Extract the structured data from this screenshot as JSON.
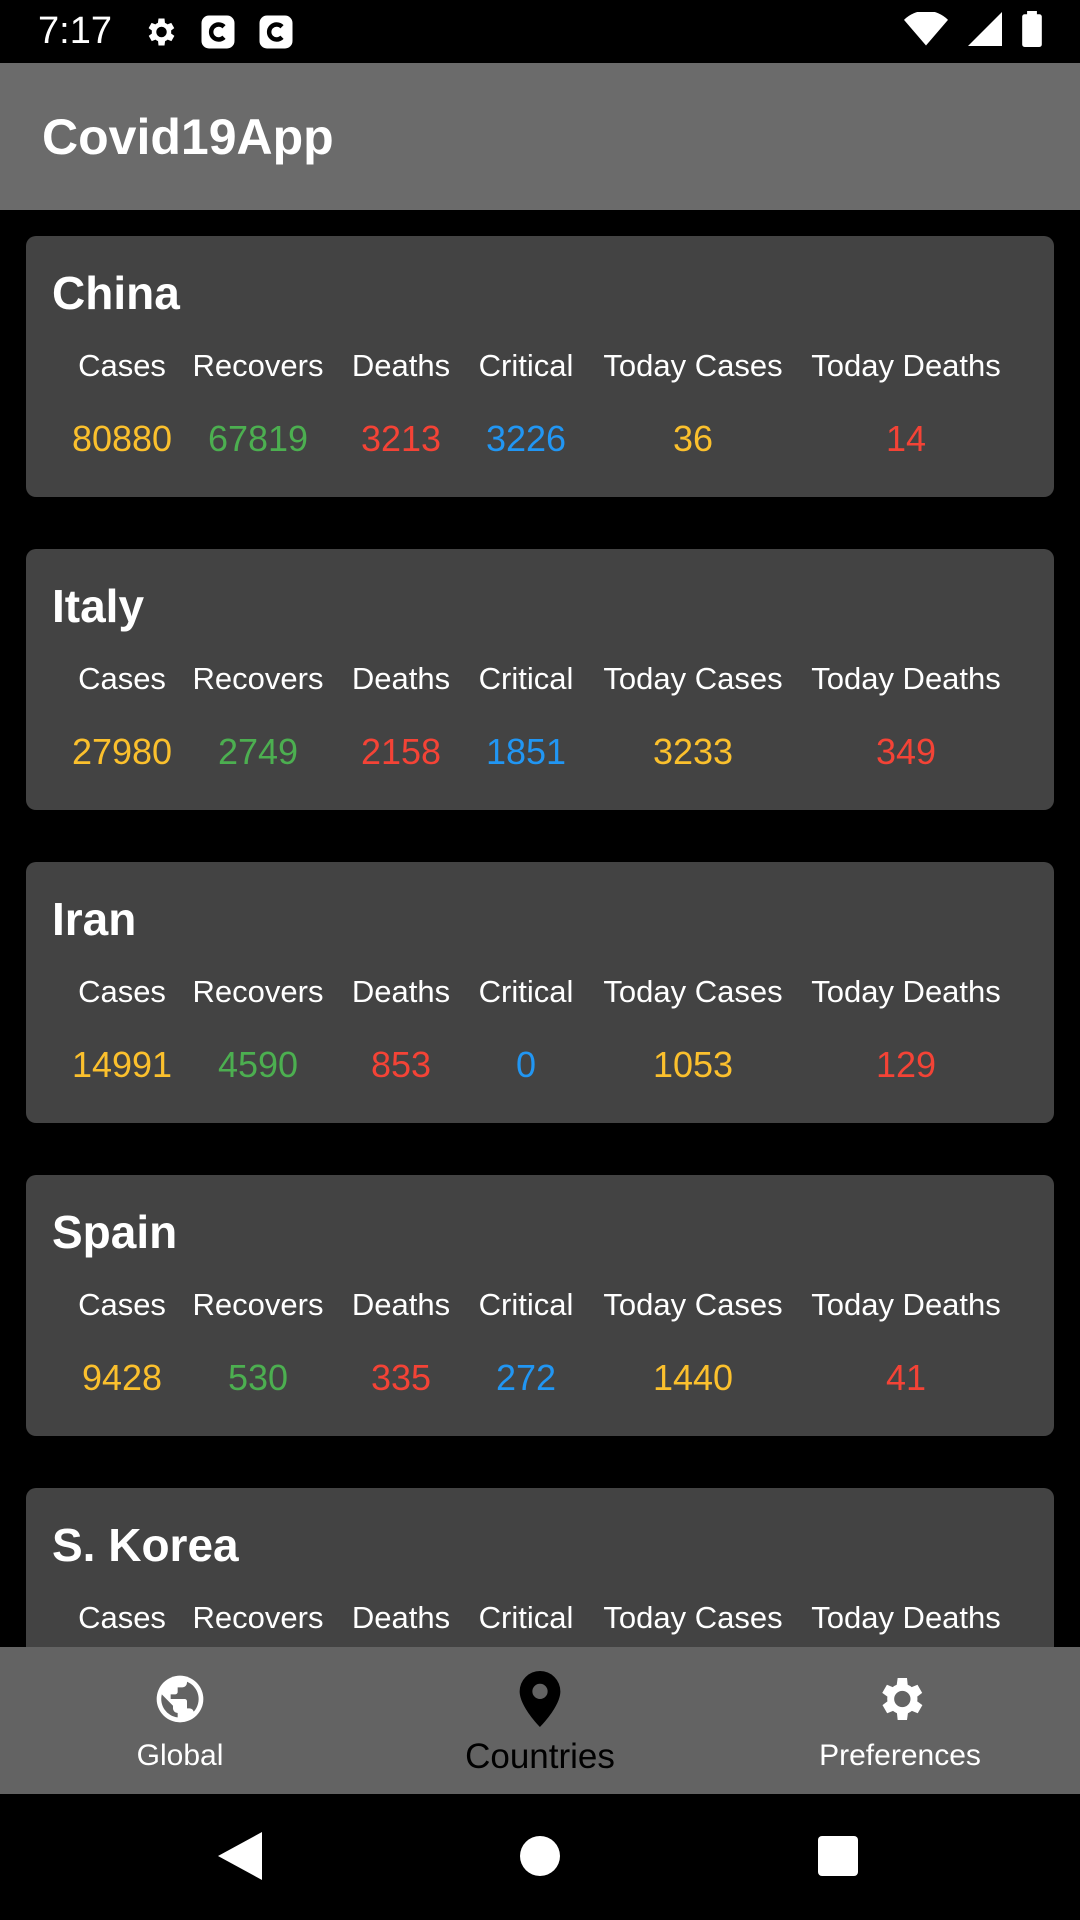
{
  "status_bar": {
    "time": "7:17",
    "icons_left": [
      "settings-icon",
      "c-app-icon",
      "c-app-icon"
    ],
    "icons_right": [
      "wifi-icon",
      "signal-icon",
      "battery-icon"
    ]
  },
  "app_bar": {
    "title": "Covid19App"
  },
  "labels": [
    "Cases",
    "Recovers",
    "Deaths",
    "Critical",
    "Today Cases",
    "Today Deaths"
  ],
  "colors": {
    "cases": "#fbc02d",
    "recovers": "#4caf50",
    "deaths": "#f44336",
    "critical": "#2196f3",
    "today_cases": "#fbc02d",
    "today_deaths": "#f44336"
  },
  "countries": [
    {
      "name": "China",
      "values": [
        "80880",
        "67819",
        "3213",
        "3226",
        "36",
        "14"
      ]
    },
    {
      "name": "Italy",
      "values": [
        "27980",
        "2749",
        "2158",
        "1851",
        "3233",
        "349"
      ]
    },
    {
      "name": "Iran",
      "values": [
        "14991",
        "4590",
        "853",
        "0",
        "1053",
        "129"
      ]
    },
    {
      "name": "Spain",
      "values": [
        "9428",
        "530",
        "335",
        "272",
        "1440",
        "41"
      ]
    },
    {
      "name": "S. Korea",
      "values": []
    }
  ],
  "bottom_nav": {
    "items": [
      {
        "label": "Global",
        "icon": "globe-icon",
        "active": false
      },
      {
        "label": "Countries",
        "icon": "location-pin-icon",
        "active": true
      },
      {
        "label": "Preferences",
        "icon": "gear-icon",
        "active": false
      }
    ]
  },
  "system_nav": {
    "buttons": [
      "back-icon",
      "home-icon",
      "recents-icon"
    ]
  }
}
